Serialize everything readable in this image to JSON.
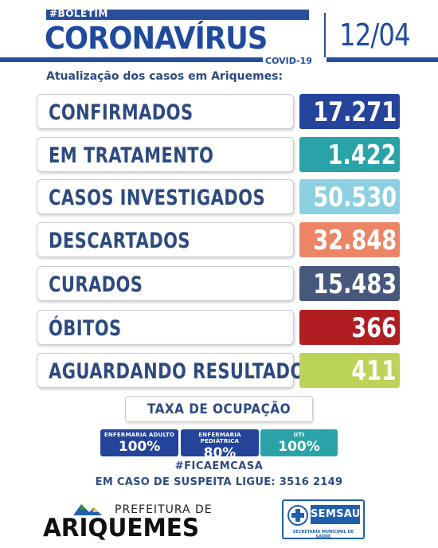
{
  "header": {
    "tag": "#BOLETIM",
    "title": "CORONAVÍRUS",
    "subtitle_small": "COVID-19",
    "date": "12/04",
    "update_text": "Atualização dos casos em Ariquemes:"
  },
  "rows": [
    {
      "label": "CONFIRMADOS",
      "value": "17.271",
      "color": "#23449a"
    },
    {
      "label": "EM TRATAMENTO",
      "value": "1.422",
      "color": "#2aa3a8"
    },
    {
      "label": "CASOS INVESTIGADOS",
      "value": "50.530",
      "color": "#8ccfe0"
    },
    {
      "label": "DESCARTADOS",
      "value": "32.848",
      "color": "#ec8466"
    },
    {
      "label": "CURADOS",
      "value": "15.483",
      "color": "#46587c"
    },
    {
      "label": "ÓBITOS",
      "value": "366",
      "color": "#b01e22"
    },
    {
      "label": "AGUARDANDO RESULTADO",
      "value": "411",
      "color": "#bcd35a"
    }
  ],
  "occupancy": {
    "title": "TAXA DE OCUPAÇÃO",
    "items": [
      {
        "label": "ENFERMARIA ADULTO",
        "value": "100%",
        "color": "#23449a"
      },
      {
        "label": "ENFERMARIA PEDIÁTRICA",
        "value": "80%",
        "color": "#23449a"
      },
      {
        "label": "UTI",
        "value": "100%",
        "color": "#2aa3a8"
      }
    ]
  },
  "footer": {
    "hashtag": "#FICAEMCASA",
    "phone_text": "EM CASO DE SUSPEITA LIGUE: 3516 2149",
    "pref_small": "PREFEITURA DE",
    "pref_big": "ARIQUEMES",
    "semsau_name": "SEMSAU",
    "semsau_sub": "SECRETARIA MUNICIPAL DE SAÚDE"
  }
}
